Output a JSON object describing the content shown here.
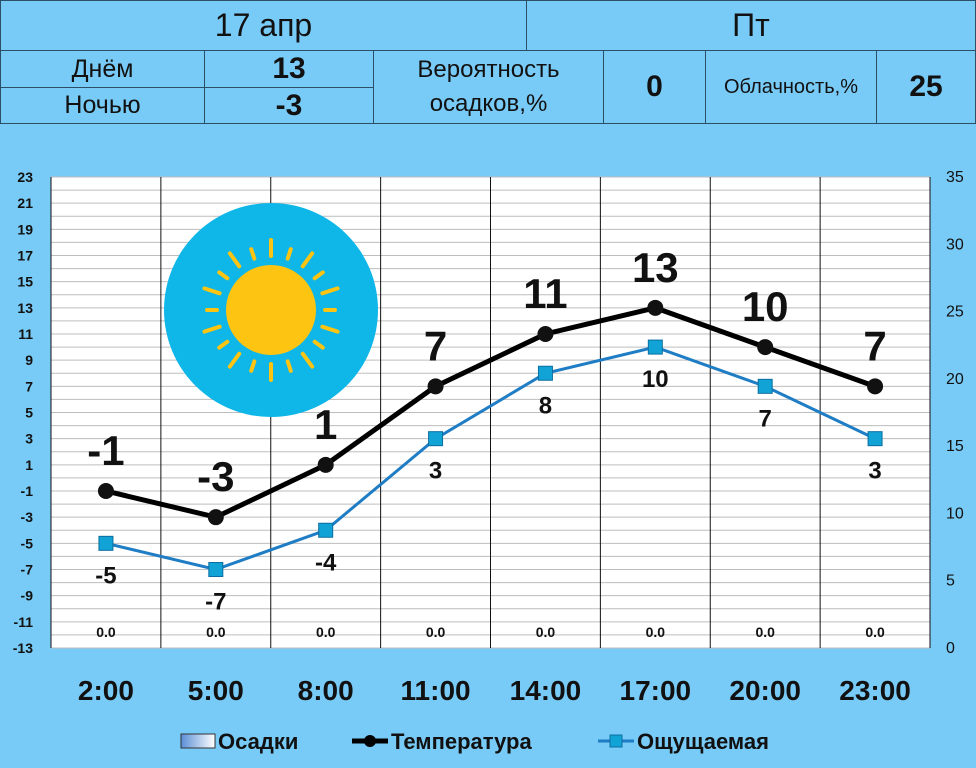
{
  "header": {
    "date": "17 апр",
    "weekday": "Пт",
    "day_label": "Днём",
    "day_value": "13",
    "night_label": "Ночью",
    "night_value": "-3",
    "precip_label_line1": "Вероятность",
    "precip_label_line2": "осадков,%",
    "precip_value": "0",
    "cloud_label": "Облачность,%",
    "cloud_value": "25"
  },
  "chart_data": {
    "type": "line",
    "categories": [
      "2:00",
      "5:00",
      "8:00",
      "11:00",
      "14:00",
      "17:00",
      "20:00",
      "23:00"
    ],
    "series": [
      {
        "name": "Температура",
        "values": [
          -1,
          -3,
          1,
          7,
          11,
          13,
          10,
          7
        ],
        "color": "#000000"
      },
      {
        "name": "Ощущаемая",
        "values": [
          -5,
          -7,
          -4,
          3,
          8,
          10,
          7,
          3
        ],
        "color": "#1e7dc4"
      }
    ],
    "precipitation": {
      "name": "Осадки",
      "values": [
        0.0,
        0.0,
        0.0,
        0.0,
        0.0,
        0.0,
        0.0,
        0.0
      ],
      "labels": [
        "0.0",
        "0.0",
        "0.0",
        "0.0",
        "0.0",
        "0.0",
        "0.0",
        "0.0"
      ]
    },
    "ylim_left": [
      -13,
      23
    ],
    "yticks_left": [
      "23",
      "21",
      "19",
      "17",
      "15",
      "13",
      "11",
      "9",
      "7",
      "5",
      "3",
      "1",
      "-1",
      "-3",
      "-5",
      "-7",
      "-9",
      "-11",
      "-13"
    ],
    "ylim_right": [
      0,
      35
    ],
    "yticks_right": [
      "35",
      "30",
      "25",
      "20",
      "15",
      "10",
      "5",
      "0"
    ],
    "legend": [
      "Осадки",
      "Температура",
      "Ощущаемая"
    ],
    "legend_position": "bottom",
    "grid": true,
    "icon": "sun-icon"
  }
}
